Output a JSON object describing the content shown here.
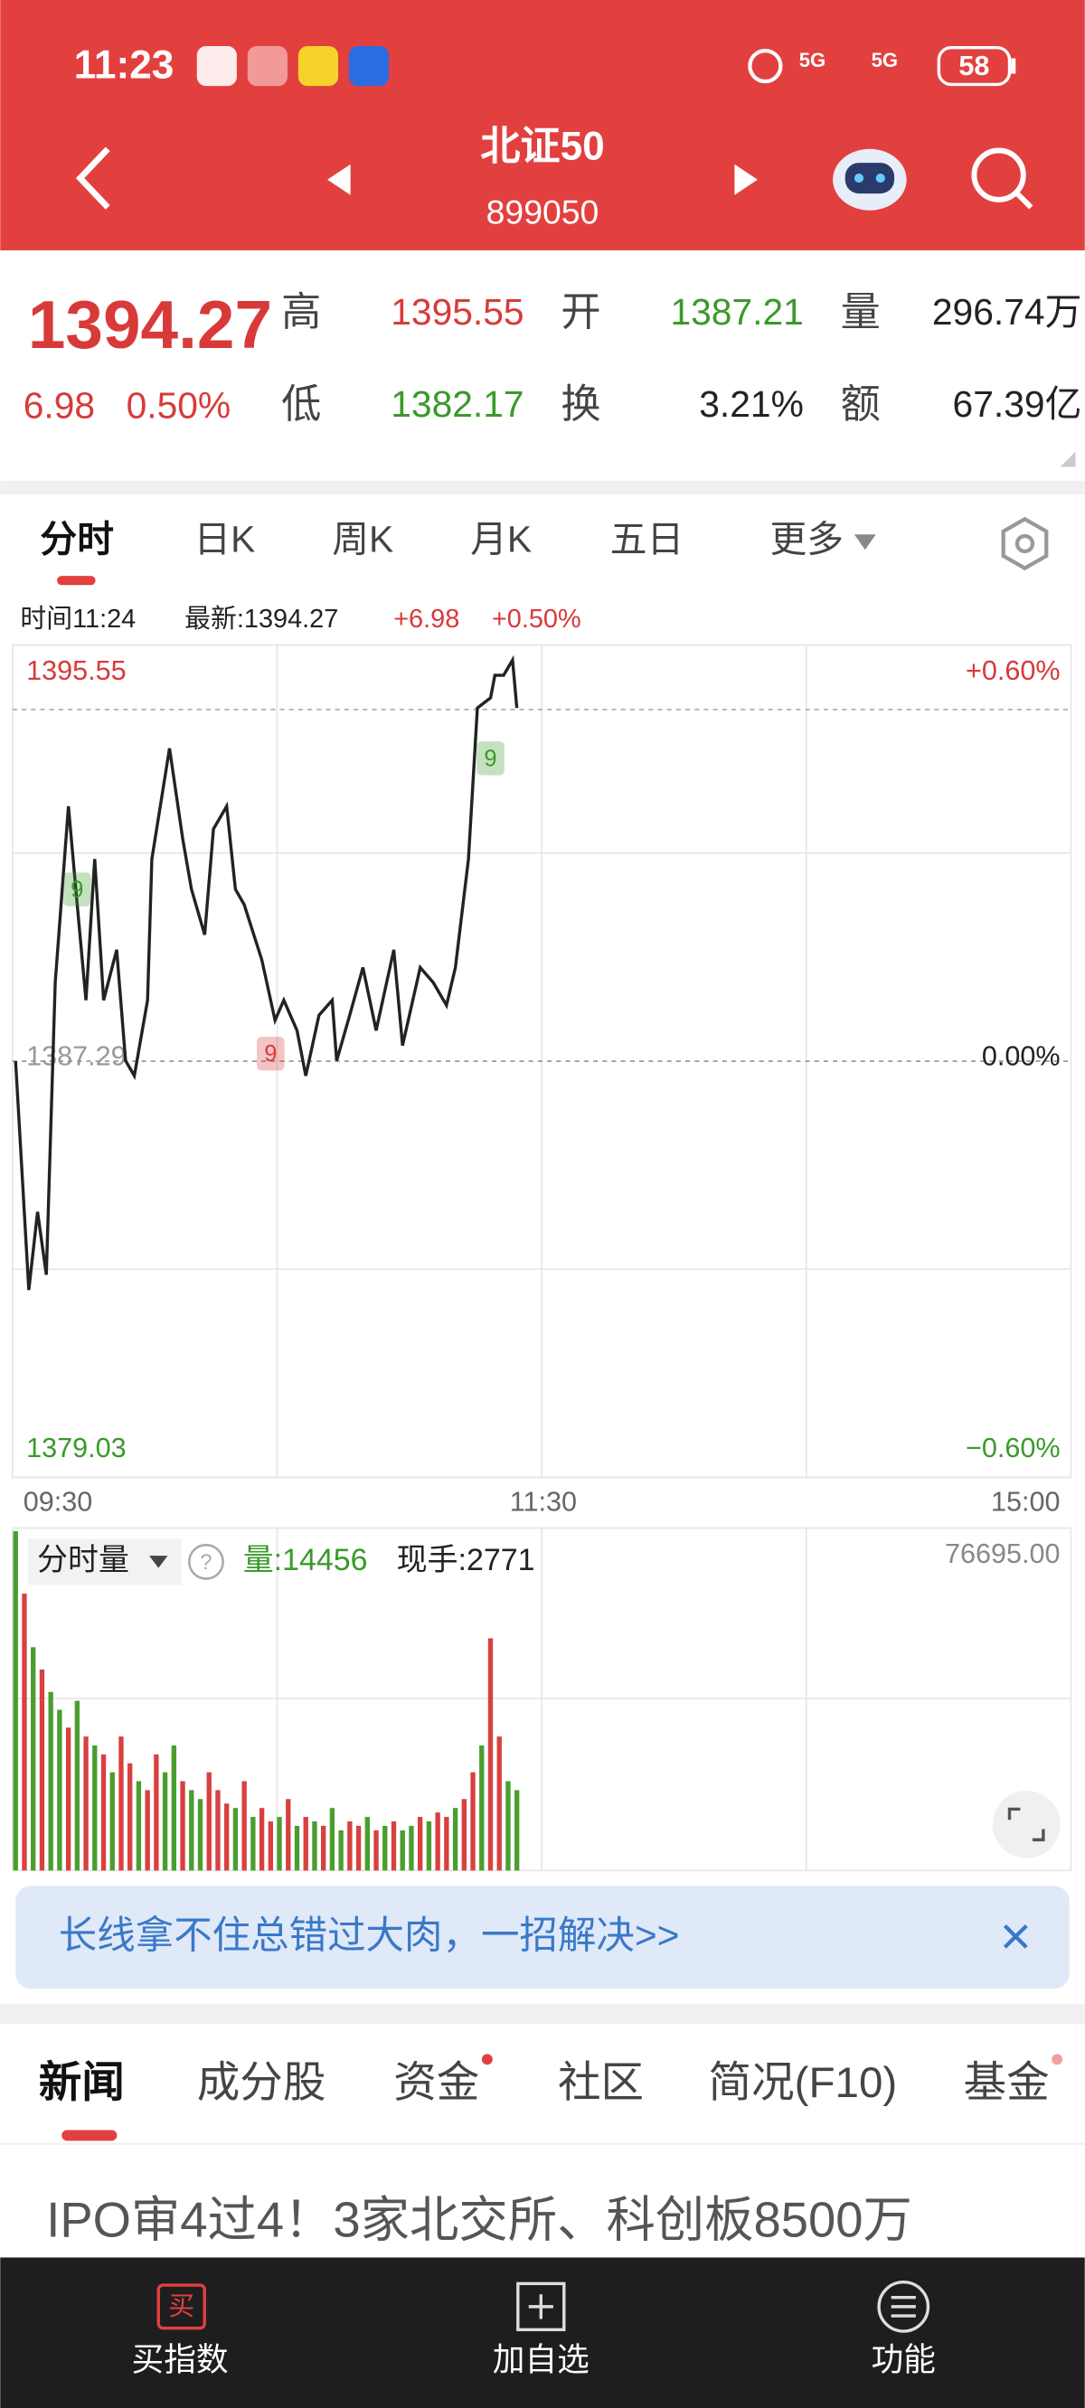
{
  "status_bar": {
    "time": "11:23",
    "network": [
      "5G",
      "5G"
    ],
    "battery": "58"
  },
  "header": {
    "title": "北证50",
    "code": "899050"
  },
  "quote": {
    "price": "1394.27",
    "change": "6.98",
    "change_pct": "0.50%",
    "fields": [
      {
        "label": "高",
        "value": "1395.55",
        "color": "#d83a3a"
      },
      {
        "label": "开",
        "value": "1387.21",
        "color": "#3a9a2a"
      },
      {
        "label": "量",
        "value": "296.74万",
        "color": "#222222"
      },
      {
        "label": "低",
        "value": "1382.17",
        "color": "#3a9a2a"
      },
      {
        "label": "换",
        "value": "3.21%",
        "color": "#222222"
      },
      {
        "label": "额",
        "value": "67.39亿",
        "color": "#222222"
      }
    ]
  },
  "tabs": [
    "分时",
    "日K",
    "周K",
    "月K",
    "五日",
    "更多"
  ],
  "info_bar": {
    "time": "时间11:24",
    "latest": "最新:1394.27",
    "change": "+6.98",
    "change_pct": "+0.50%"
  },
  "chart_data": [
    {
      "type": "line",
      "color": "#222222",
      "x": [
        0,
        3,
        5,
        7,
        9,
        12,
        14,
        16,
        18,
        20,
        23,
        25,
        27,
        30,
        31,
        35,
        38,
        40,
        43,
        45,
        48,
        50,
        52,
        56,
        59,
        61,
        64,
        66,
        69,
        72,
        73,
        76,
        79,
        82,
        86,
        88,
        92,
        95,
        98,
        100,
        103,
        105,
        108,
        109,
        111,
        113,
        114
      ],
      "values": [
        1387.29,
        1382.75,
        1384.3,
        1383.05,
        1388.85,
        1392.35,
        1390.4,
        1388.5,
        1391.3,
        1388.5,
        1389.5,
        1387.3,
        1387.0,
        1388.5,
        1391.3,
        1393.5,
        1391.7,
        1390.7,
        1389.8,
        1391.9,
        1392.35,
        1390.7,
        1390.4,
        1389.3,
        1388.1,
        1388.5,
        1387.9,
        1387.0,
        1388.2,
        1388.5,
        1387.3,
        1388.2,
        1389.15,
        1387.9,
        1389.5,
        1387.6,
        1389.15,
        1388.85,
        1388.4,
        1389.15,
        1391.3,
        1394.3,
        1394.5,
        1394.95,
        1394.95,
        1395.25,
        1394.3
      ],
      "xlim": [
        0,
        240
      ],
      "xticks": [
        {
          "value": 0,
          "label": "09:30"
        },
        {
          "value": 120,
          "label": "11:30"
        },
        {
          "value": 240,
          "label": "15:00"
        }
      ],
      "ylim": [
        1379.03,
        1395.55
      ],
      "yticks": [
        1379.03,
        1387.29,
        1395.55
      ],
      "y2lim": [
        -0.6,
        0.6
      ],
      "y2ticks": [
        {
          "value": 0.6,
          "label": "+0.60%"
        },
        {
          "value": 0,
          "label": "0.00%"
        },
        {
          "value": -0.6,
          "label": "−0.60%"
        }
      ],
      "last_value": 1394.27,
      "annotations": [
        {
          "x": 14,
          "y": 1390.7,
          "label": "9",
          "color": "#3a9a2a"
        },
        {
          "x": 58,
          "y": 1387.44,
          "label": "9",
          "color": "#d83a3a"
        },
        {
          "x": 108,
          "y": 1393.3,
          "label": "9",
          "color": "#3a9a2a"
        }
      ]
    },
    {
      "type": "bar",
      "title": "分时量",
      "volume": "量:14456",
      "hand": "现手:2771",
      "x": [
        0,
        2,
        4,
        6,
        8,
        10,
        12,
        14,
        16,
        18,
        20,
        22,
        24,
        26,
        28,
        30,
        32,
        34,
        36,
        38,
        40,
        42,
        44,
        46,
        48,
        50,
        52,
        54,
        56,
        58,
        60,
        62,
        64,
        66,
        68,
        70,
        72,
        74,
        76,
        78,
        80,
        82,
        84,
        86,
        88,
        90,
        92,
        94,
        96,
        98,
        100,
        102,
        104,
        106,
        108,
        110,
        112,
        114
      ],
      "values": [
        76000,
        62000,
        50000,
        45000,
        40000,
        36000,
        32000,
        38000,
        30000,
        28000,
        26000,
        22000,
        30000,
        24000,
        20000,
        18000,
        26000,
        22000,
        28000,
        20000,
        18000,
        16000,
        22000,
        18000,
        15000,
        14000,
        20000,
        12000,
        14000,
        11000,
        12000,
        16000,
        10000,
        12000,
        11000,
        10000,
        14000,
        9000,
        11000,
        10000,
        12000,
        9000,
        10000,
        11000,
        9000,
        10000,
        12000,
        11000,
        13000,
        12000,
        14000,
        16000,
        22000,
        28000,
        52000,
        30000,
        20000,
        18000
      ],
      "colors": [
        "#4a9e2f",
        "#d94040",
        "#4a9e2f",
        "#d94040",
        "#4a9e2f",
        "#4a9e2f",
        "#d94040",
        "#4a9e2f",
        "#d94040",
        "#4a9e2f",
        "#d94040",
        "#4a9e2f",
        "#d94040",
        "#d94040",
        "#4a9e2f",
        "#d94040",
        "#d94040",
        "#4a9e2f",
        "#4a9e2f",
        "#d94040",
        "#4a9e2f",
        "#4a9e2f",
        "#d94040",
        "#d94040",
        "#d94040",
        "#4a9e2f",
        "#d94040",
        "#4a9e2f",
        "#d94040",
        "#d94040",
        "#4a9e2f",
        "#d94040",
        "#4a9e2f",
        "#d94040",
        "#4a9e2f",
        "#d94040",
        "#4a9e2f",
        "#4a9e2f",
        "#d94040",
        "#d94040",
        "#4a9e2f",
        "#d94040",
        "#4a9e2f",
        "#d94040",
        "#4a9e2f",
        "#4a9e2f",
        "#d94040",
        "#4a9e2f",
        "#d94040",
        "#d94040",
        "#4a9e2f",
        "#d94040",
        "#d94040",
        "#4a9e2f",
        "#d94040",
        "#d94040",
        "#4a9e2f",
        "#4a9e2f"
      ],
      "xlim": [
        0,
        240
      ],
      "ylim": [
        0,
        76695
      ],
      "yticks": [
        {
          "value": 76695,
          "label": "76695.00"
        }
      ]
    }
  ],
  "banner": "长线拿不住总错过大肉，一招解决>>",
  "news_tabs": [
    "新闻",
    "成分股",
    "资金",
    "社区",
    "简况(F10)",
    "基金"
  ],
  "headline": "IPO审4过4！3家北交所、科创板8500万",
  "bottom_nav": {
    "buy_icon": "买",
    "items": [
      "买指数",
      "加自选",
      "功能"
    ]
  }
}
